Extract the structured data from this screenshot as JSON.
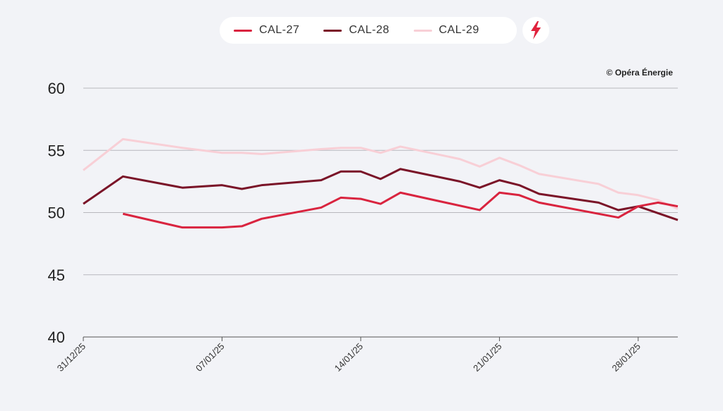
{
  "legend": [
    {
      "label": "CAL-27",
      "color": "#d9243f"
    },
    {
      "label": "CAL-28",
      "color": "#7a1428"
    },
    {
      "label": "CAL-29",
      "color": "#f8cfd6"
    }
  ],
  "icon": "lightning-bolt-icon",
  "credit": "© Opéra Énergie",
  "chart_data": {
    "type": "line",
    "title": "",
    "xlabel": "",
    "ylabel": "",
    "ylim": [
      40,
      60
    ],
    "yticks": [
      "40",
      "45",
      "50",
      "55",
      "60"
    ],
    "xlim_days": [
      0,
      30
    ],
    "xticks": [
      {
        "day": 0,
        "label": "31/12/25"
      },
      {
        "day": 7,
        "label": "07/01/25"
      },
      {
        "day": 14,
        "label": "14/01/25"
      },
      {
        "day": 21,
        "label": "21/01/25"
      },
      {
        "day": 28,
        "label": "28/01/25"
      }
    ],
    "grid": true,
    "legend_position": "top-center",
    "series": [
      {
        "name": "CAL-27",
        "color": "#d9243f",
        "x": [
          2,
          5,
          6,
          7,
          8,
          9,
          12,
          13,
          14,
          15,
          16,
          20,
          21,
          22,
          23,
          27,
          28,
          29,
          30
        ],
        "values": [
          49.9,
          48.8,
          48.8,
          48.8,
          48.9,
          49.5,
          50.4,
          51.2,
          51.1,
          50.7,
          51.6,
          50.2,
          51.6,
          51.4,
          50.8,
          49.6,
          50.5,
          50.8,
          50.5
        ]
      },
      {
        "name": "CAL-28",
        "color": "#7a1428",
        "x": [
          0,
          2,
          5,
          7,
          8,
          9,
          12,
          13,
          14,
          15,
          16,
          19,
          20,
          21,
          22,
          23,
          26,
          27,
          28,
          30
        ],
        "values": [
          50.7,
          52.9,
          52.0,
          52.2,
          51.9,
          52.2,
          52.6,
          53.3,
          53.3,
          52.7,
          53.5,
          52.5,
          52.0,
          52.6,
          52.2,
          51.5,
          50.8,
          50.2,
          50.5,
          49.4
        ]
      },
      {
        "name": "CAL-29",
        "color": "#f8cfd6",
        "x": [
          0,
          2,
          5,
          7,
          8,
          9,
          12,
          13,
          14,
          15,
          16,
          19,
          20,
          21,
          22,
          23,
          26,
          27,
          28,
          29,
          30
        ],
        "values": [
          53.4,
          55.9,
          55.2,
          54.8,
          54.8,
          54.7,
          55.1,
          55.2,
          55.2,
          54.8,
          55.3,
          54.3,
          53.7,
          54.4,
          53.8,
          53.1,
          52.3,
          51.6,
          51.4,
          51.0,
          50.3
        ]
      }
    ]
  }
}
